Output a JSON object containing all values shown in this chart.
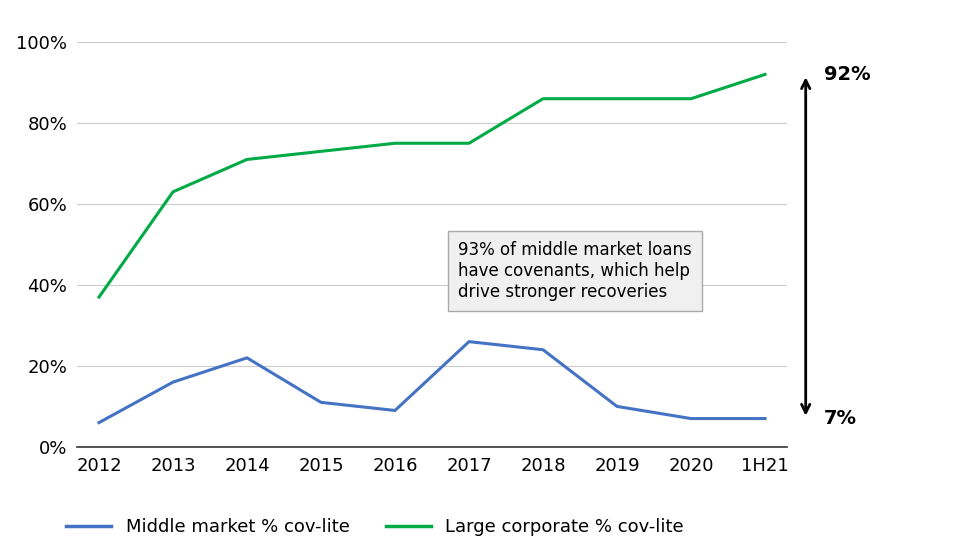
{
  "years": [
    "2012",
    "2013",
    "2014",
    "2015",
    "2016",
    "2017",
    "2018",
    "2019",
    "2020",
    "1H21"
  ],
  "middle_market": [
    0.06,
    0.16,
    0.22,
    0.11,
    0.09,
    0.26,
    0.24,
    0.1,
    0.07,
    0.07
  ],
  "large_corporate": [
    0.37,
    0.63,
    0.71,
    0.73,
    0.75,
    0.75,
    0.86,
    0.86,
    0.86,
    0.92
  ],
  "middle_market_color": "#4472C4",
  "large_corporate_color": "#00AA44",
  "annotation_text": "93% of middle market loans\nhave covenants, which help\ndrive stronger recoveries",
  "arrow_top_label": "92%",
  "arrow_bottom_label": "7%",
  "legend_middle": "Middle market % cov-lite",
  "legend_large": "Large corporate % cov-lite",
  "bg_color": "#ffffff",
  "grid_color": "#cccccc",
  "ylim": [
    0,
    1.05
  ],
  "yticks": [
    0.0,
    0.2,
    0.4,
    0.6,
    0.8,
    1.0
  ],
  "ytick_labels": [
    "0%",
    "20%",
    "40%",
    "60%",
    "80%",
    "100%"
  ]
}
